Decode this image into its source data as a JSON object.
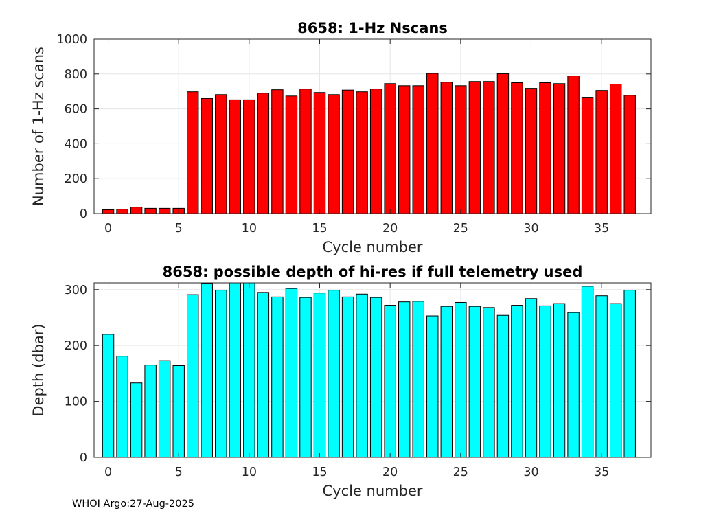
{
  "footer": "WHOI Argo:27-Aug-2025",
  "chart_data": [
    {
      "type": "bar",
      "title": "8658: 1-Hz Nscans",
      "xlabel": "Cycle number",
      "ylabel": "Number of 1-Hz scans",
      "xlim": [
        -1,
        38.5
      ],
      "ylim": [
        0,
        1000
      ],
      "xticks": [
        0,
        5,
        10,
        15,
        20,
        25,
        30,
        35
      ],
      "yticks": [
        0,
        200,
        400,
        600,
        800,
        1000
      ],
      "grid": true,
      "bar_color": "#ff0000",
      "x": [
        0,
        1,
        2,
        3,
        4,
        5,
        6,
        7,
        8,
        9,
        10,
        11,
        12,
        13,
        14,
        15,
        16,
        17,
        18,
        19,
        20,
        21,
        22,
        23,
        24,
        25,
        26,
        27,
        28,
        29,
        30,
        31,
        32,
        33,
        34,
        35,
        36,
        37
      ],
      "values": [
        22,
        25,
        37,
        30,
        30,
        30,
        698,
        660,
        682,
        652,
        652,
        690,
        710,
        674,
        714,
        694,
        682,
        708,
        698,
        714,
        745,
        733,
        733,
        803,
        753,
        733,
        757,
        757,
        801,
        750,
        718,
        750,
        745,
        789,
        667,
        706,
        742,
        678
      ]
    },
    {
      "type": "bar",
      "title": "8658: possible depth of hi-res if full telemetry used",
      "xlabel": "Cycle number",
      "ylabel": "Depth (dbar)",
      "xlim": [
        -1,
        38.5
      ],
      "ylim": [
        0,
        312
      ],
      "xticks": [
        0,
        5,
        10,
        15,
        20,
        25,
        30,
        35
      ],
      "yticks": [
        0,
        100,
        200,
        300
      ],
      "grid": true,
      "bar_color": "#00ffff",
      "x": [
        0,
        1,
        2,
        3,
        4,
        5,
        6,
        7,
        8,
        9,
        10,
        11,
        12,
        13,
        14,
        15,
        16,
        17,
        18,
        19,
        20,
        21,
        22,
        23,
        24,
        25,
        26,
        27,
        28,
        29,
        30,
        31,
        32,
        33,
        34,
        35,
        36,
        37
      ],
      "values": [
        220,
        181,
        133,
        165,
        173,
        164,
        291,
        311,
        299,
        312,
        312,
        295,
        287,
        302,
        286,
        294,
        299,
        287,
        292,
        286,
        272,
        278,
        279,
        253,
        270,
        277,
        270,
        268,
        254,
        272,
        284,
        271,
        275,
        259,
        306,
        289,
        275,
        299
      ]
    }
  ]
}
